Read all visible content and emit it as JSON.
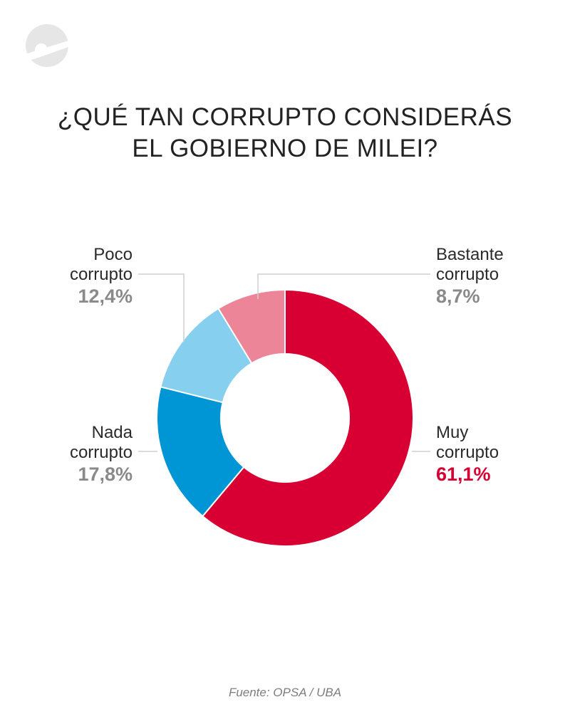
{
  "title": {
    "line1": "¿QUÉ TAN CORRUPTO CONSIDERÁS",
    "line2": "EL GOBIERNO DE MILEI?"
  },
  "source": "Fuente: OPSA / UBA",
  "logo": {
    "icon": "publisher-logo-icon"
  },
  "chart_data": {
    "type": "pie",
    "style": "donut",
    "title": "¿QUÉ TAN CORRUPTO CONSIDERÁS EL GOBIERNO DE MILEI?",
    "slices": [
      {
        "name": "Muy corrupto",
        "line1": "Muy",
        "line2": "corrupto",
        "value": 61.1,
        "label": "61,1%",
        "color": "#d80032",
        "label_color": "#d80032"
      },
      {
        "name": "Nada corrupto",
        "line1": "Nada",
        "line2": "corrupto",
        "value": 17.8,
        "label": "17,8%",
        "color": "#0096d6",
        "label_color": "#8a8a8a"
      },
      {
        "name": "Poco corrupto",
        "line1": "Poco",
        "line2": "corrupto",
        "value": 12.4,
        "label": "12,4%",
        "color": "#87cfee",
        "label_color": "#8a8a8a"
      },
      {
        "name": "Bastante corrupto",
        "line1": "Bastante",
        "line2": "corrupto",
        "value": 8.7,
        "label": "8,7%",
        "color": "#ec8597",
        "label_color": "#8a8a8a"
      }
    ]
  }
}
